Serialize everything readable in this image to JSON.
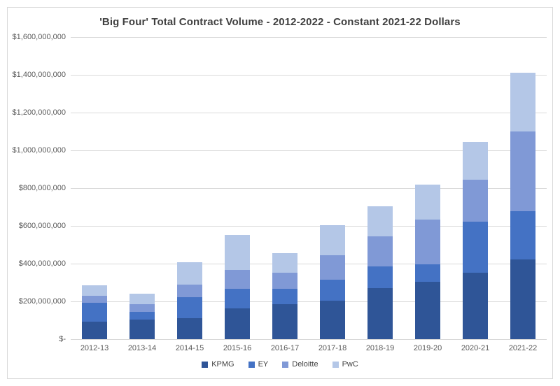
{
  "title": "'Big Four' Total Contract Volume - 2012-2022 - Constant 2021-22 Dollars",
  "colors": {
    "kpmg": "#2F5597",
    "ey": "#4472C4",
    "deloitte": "#8099D6",
    "pwc": "#B4C7E7",
    "gridline": "#D9D9D9",
    "axis_text": "#595959",
    "title_text": "#404040",
    "frame_border": "#D9D9D9"
  },
  "chart_data": {
    "type": "bar",
    "stacked": true,
    "grid": true,
    "legend_position": "bottom",
    "title": "'Big Four' Total Contract Volume - 2012-2022 - Constant 2021-22 Dollars",
    "xlabel": "",
    "ylabel": "",
    "ylim": [
      0,
      1600000000
    ],
    "ytick_step": 200000000,
    "ytick_labels_top_to_bottom": [
      "$1,600,000,000",
      "$1,400,000,000",
      "$1,200,000,000",
      "$1,000,000,000",
      "$800,000,000",
      "$600,000,000",
      "$400,000,000",
      "$200,000,000",
      "$-"
    ],
    "categories": [
      "2012-13",
      "2013-14",
      "2014-15",
      "2015-16",
      "2016-17",
      "2017-18",
      "2018-19",
      "2019-20",
      "2020-21",
      "2021-22"
    ],
    "series": [
      {
        "name": "KPMG",
        "color_key": "kpmg",
        "values": [
          93000000,
          105000000,
          111000000,
          163000000,
          185000000,
          204000000,
          270000000,
          302000000,
          352000000,
          422000000
        ]
      },
      {
        "name": "EY",
        "color_key": "ey",
        "values": [
          98000000,
          40000000,
          111000000,
          105000000,
          80000000,
          111000000,
          117000000,
          95000000,
          271000000,
          254000000
        ]
      },
      {
        "name": "Deloitte",
        "color_key": "deloitte",
        "values": [
          40000000,
          40000000,
          68000000,
          99000000,
          87000000,
          130000000,
          157000000,
          238000000,
          220000000,
          423000000
        ]
      },
      {
        "name": "PwC",
        "color_key": "pwc",
        "values": [
          53000000,
          56000000,
          117000000,
          185000000,
          105000000,
          160000000,
          160000000,
          183000000,
          203000000,
          312000000
        ]
      }
    ],
    "approx_totals": [
      284000000,
      241000000,
      407000000,
      552000000,
      457000000,
      605000000,
      704000000,
      818000000,
      1046000000,
      1411000000
    ]
  }
}
